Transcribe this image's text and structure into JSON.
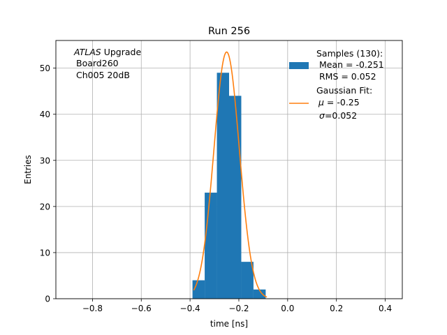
{
  "chart_data": {
    "type": "bar",
    "title": "Run 256",
    "xlabel": "time [ns]",
    "ylabel": "Entries",
    "xlim": [
      -0.95,
      0.47
    ],
    "ylim": [
      0,
      56
    ],
    "grid": true,
    "xticks": [
      -0.8,
      -0.6,
      -0.4,
      -0.2,
      0.0,
      0.2,
      0.4
    ],
    "xtick_labels": [
      "−0.8",
      "−0.6",
      "−0.4",
      "−0.2",
      "0.0",
      "0.2",
      "0.4"
    ],
    "yticks": [
      0,
      10,
      20,
      30,
      40,
      50
    ],
    "ytick_labels": [
      "0",
      "10",
      "20",
      "30",
      "40",
      "50"
    ],
    "annotation": {
      "line1_italic": "ATLAS",
      "line1_rest": " Upgrade",
      "line2": "Board260",
      "line3": "Ch005 20dB"
    },
    "legend": {
      "placement": "top-right",
      "hist_lines": [
        "Samples (130):",
        " Mean = -0.251",
        " RMS = 0.052"
      ],
      "fit_line1": "Gaussian Fit:",
      "fit_mu_symbol": "μ",
      "fit_mu_value": " = -0.25",
      "fit_sigma_symbol": "σ",
      "fit_sigma_value": "=0.052"
    },
    "histogram": {
      "bin_edges": [
        -0.39,
        -0.34,
        -0.29,
        -0.24,
        -0.19,
        -0.14,
        -0.09
      ],
      "counts": [
        4,
        23,
        49,
        44,
        8,
        2
      ],
      "color": "#1f77b4"
    },
    "fit": {
      "type": "gaussian",
      "mu": -0.25,
      "sigma": 0.052,
      "amplitude": 53.5,
      "x_range": [
        -0.385,
        -0.085
      ],
      "color": "#ff7f0e"
    }
  }
}
